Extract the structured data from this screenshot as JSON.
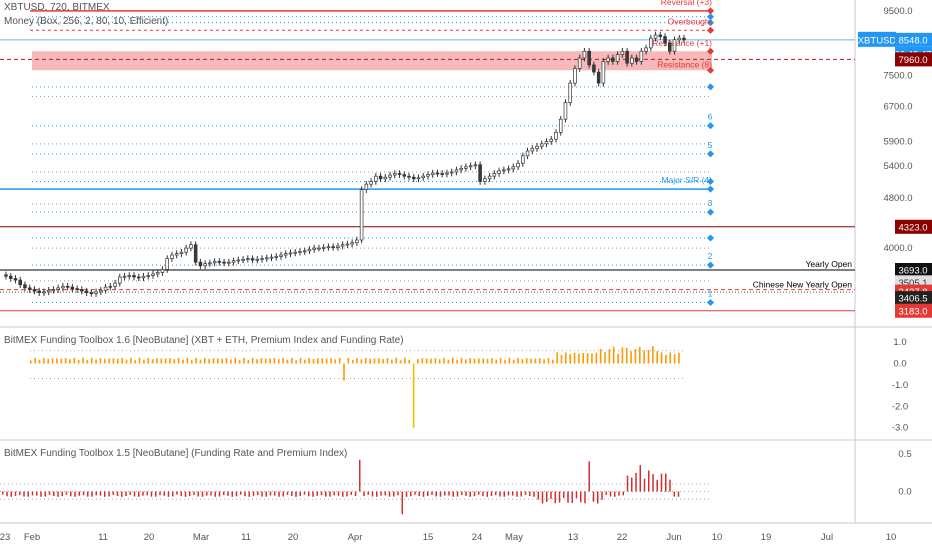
{
  "header": {
    "symbol_line": "XBTUSD, 720, BITMEX",
    "indicator_line": "Money (Box, 256, 2, 80, 10, Efficient)"
  },
  "price_axis": {
    "ticks": [
      "9500.0",
      "7500.0",
      "6700.0",
      "5900.0",
      "5400.0",
      "4800.0",
      "4000.0"
    ],
    "tag_current": "XBTUSD",
    "tag_current_value": "8548.0",
    "tag_timer": "02:49:47",
    "tag_level_7960": "7960.0",
    "tag_level_4323": "4323.0",
    "tag_yearly_open": "3693.0",
    "tag_3505": "3505.1",
    "tag_3437": "3437.8",
    "tag_3406": "3406.5",
    "tag_3183": "3183.0"
  },
  "level_labels": {
    "reversal": "Reversal (+3)",
    "overbought": "Overbought",
    "resistance_plus1": "Resistance (+1)",
    "resistance_8": "Resistance (8)",
    "major_sr": "Major S/R (4)",
    "num_6": "6",
    "num_5": "5",
    "num_3": "3",
    "num_2": "2",
    "num_1": "1",
    "yearly_open": "Yearly Open",
    "chinese_new_year": "Chinese New Yearly Open"
  },
  "panel2": {
    "title": "BitMEX Funding Toolbox 1.6 [NeoButane] (XBT + ETH, Premium Index and Funding Rate)",
    "ticks": [
      "1.0",
      "0.0",
      "-1.0",
      "-2.0",
      "-3.0"
    ]
  },
  "panel3": {
    "title": "BitMEX Funding Toolbox 1.5 [NeoButane] (Funding Rate and Premium Index)",
    "ticks": [
      "0.5",
      "0.0"
    ]
  },
  "time_axis": {
    "labels": [
      "23",
      "Feb",
      "11",
      "20",
      "Mar",
      "11",
      "20",
      "Apr",
      "15",
      "24",
      "May",
      "13",
      "22",
      "Jun",
      "10",
      "19",
      "Jul",
      "10"
    ]
  },
  "colors": {
    "up": "#ffffff",
    "down": "#3a3a3a",
    "blue": "#2196f3",
    "red": "#e53935",
    "dark_red": "#8b0000",
    "orange": "#ff9800",
    "funding_red": "#d32f2f"
  },
  "chart_data": {
    "type": "candlestick",
    "series": [
      {
        "name": "XBTUSD",
        "close": [
          3610,
          3580,
          3560,
          3500,
          3460,
          3440,
          3420,
          3400,
          3410,
          3430,
          3440,
          3460,
          3480,
          3470,
          3450,
          3440,
          3420,
          3400,
          3390,
          3410,
          3430,
          3470,
          3480,
          3520,
          3600,
          3610,
          3620,
          3600,
          3590,
          3610,
          3620,
          3640,
          3660,
          3700,
          3850,
          3900,
          3920,
          3940,
          4000,
          4050,
          3800,
          3750,
          3780,
          3790,
          3810,
          3800,
          3790,
          3800,
          3820,
          3830,
          3840,
          3850,
          3830,
          3840,
          3850,
          3860,
          3870,
          3880,
          3900,
          3920,
          3930,
          3940,
          3950,
          3960,
          3980,
          4000,
          4000,
          4010,
          4020,
          4010,
          4030,
          4050,
          4060,
          4080,
          4120,
          4950,
          5050,
          5100,
          5200,
          5150,
          5180,
          5220,
          5250,
          5230,
          5200,
          5180,
          5150,
          5170,
          5200,
          5230,
          5260,
          5250,
          5240,
          5260,
          5280,
          5320,
          5350,
          5380,
          5400,
          5420,
          5100,
          5150,
          5200,
          5250,
          5300,
          5320,
          5340,
          5380,
          5450,
          5600,
          5700,
          5750,
          5800,
          5850,
          5900,
          5950,
          6100,
          6400,
          6800,
          7300,
          7700,
          8000,
          8200,
          7800,
          7600,
          7300,
          7900,
          8000,
          7900,
          8100,
          8200,
          7850,
          8000,
          7900,
          8200,
          8300,
          8600,
          8700,
          8650,
          8450,
          8200,
          8550,
          8600,
          8548
        ]
      }
    ],
    "y_range": [
      3100,
      9600
    ],
    "levels": [
      3183,
      3406.5,
      3437.8,
      3505.1,
      3693,
      4323,
      4960,
      7960,
      8548,
      9500
    ],
    "resistance_zone": [
      7650,
      8200
    ],
    "panel2_range": [
      -3.2,
      1.1
    ],
    "panel3_range": [
      -0.35,
      0.55
    ],
    "grid": false
  }
}
